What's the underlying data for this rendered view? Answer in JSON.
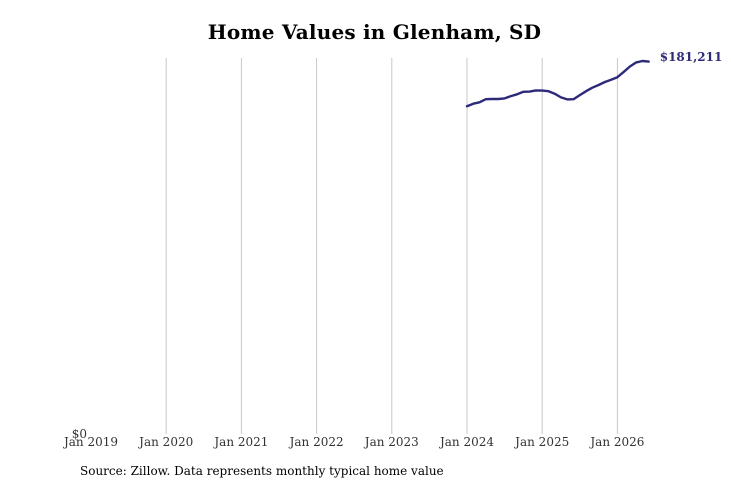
{
  "chart_data": {
    "type": "line",
    "title": "Home Values in Glenham, SD",
    "xlabel": "",
    "ylabel": "",
    "x_ticks": [
      "Jan 2019",
      "Jan 2020",
      "Jan 2021",
      "Jan 2022",
      "Jan 2023",
      "Jan 2024",
      "Jan 2025",
      "Jan 2026"
    ],
    "y_tick_labels": [
      "$0"
    ],
    "xlim": [
      "2019-01",
      "2026-09"
    ],
    "ylim": [
      0,
      181500
    ],
    "grid": "vertical",
    "colors": {
      "line": "#2e2a7a",
      "grid": "#c8c8c8",
      "end_label": "#2e2a7a"
    },
    "end_label": "$181,211",
    "series": [
      {
        "x": [
          "2024-01",
          "2024-02",
          "2024-03",
          "2024-04",
          "2024-05",
          "2024-06",
          "2024-07",
          "2024-08",
          "2024-09",
          "2024-10",
          "2024-11",
          "2024-12",
          "2025-01",
          "2025-02",
          "2025-03",
          "2025-04",
          "2025-05",
          "2025-06",
          "2025-07",
          "2025-08",
          "2025-09",
          "2025-10",
          "2025-11",
          "2025-12",
          "2026-01",
          "2026-02",
          "2026-03",
          "2026-04",
          "2026-05",
          "2026-06"
        ],
        "values": [
          159500,
          160700,
          161400,
          162900,
          163000,
          163000,
          163300,
          164400,
          165300,
          166500,
          166600,
          167200,
          167100,
          166800,
          165600,
          163800,
          162800,
          162900,
          164900,
          166800,
          168500,
          169800,
          171300,
          172400,
          173600,
          176200,
          178800,
          180800,
          181500,
          181211
        ]
      }
    ]
  },
  "source": "Source: Zillow. Data represents monthly typical home value"
}
